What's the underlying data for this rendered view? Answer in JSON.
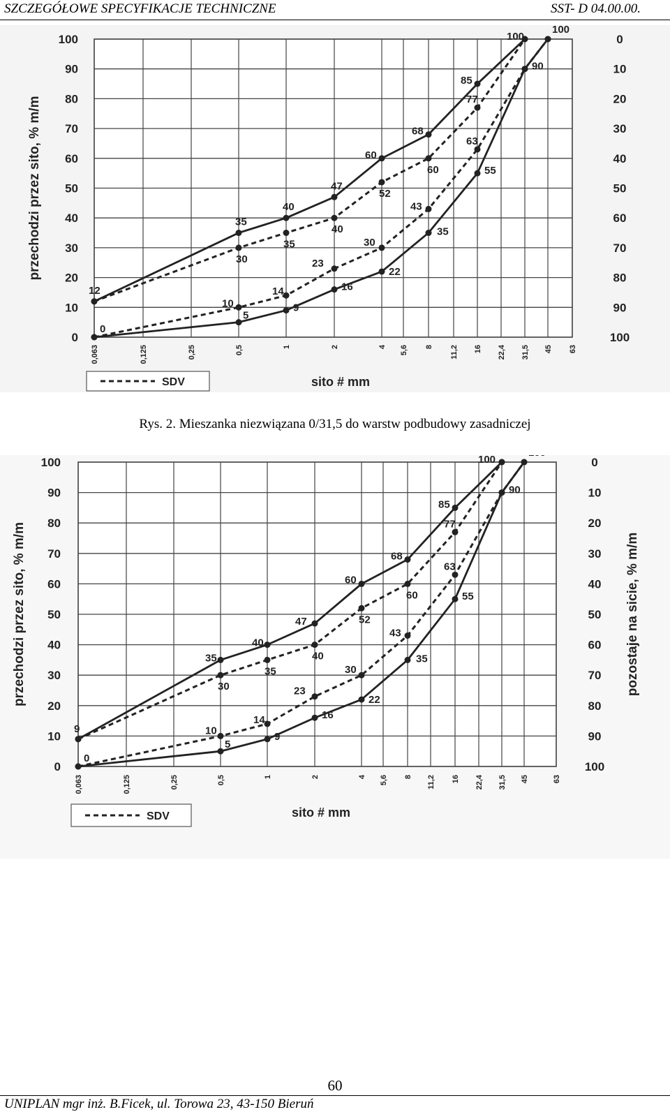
{
  "header": {
    "left": "SZCZEGÓŁOWE SPECYFIKACJE TECHNICZNE",
    "right": "SST- D 04.00.00."
  },
  "caption": "Rys. 2. Mieszanka niezwiązana 0/31,5 do warstw podbudowy zasadniczej",
  "page_number": "60",
  "footer": "UNIPLAN  mgr inż. B.Ficek, ul. Torowa 23, 43-150 Bieruń",
  "chart_data": [
    {
      "type": "line",
      "xlabel": "sito # mm",
      "ylabel": "przechodzi przez sito, % m/m",
      "ylabel_right": "",
      "legend": "SDV",
      "categories": [
        "0,063",
        "0,125",
        "0,25",
        "0,5",
        "1",
        "2",
        "4",
        "5,6",
        "8",
        "11,2",
        "16",
        "22,4",
        "31,5",
        "45",
        "63"
      ],
      "y_ticks": [
        "100",
        "90",
        "80",
        "70",
        "60",
        "50",
        "40",
        "30",
        "20",
        "10",
        "0"
      ],
      "y_right_ticks": [
        "0",
        "10",
        "20",
        "30",
        "40",
        "50",
        "60",
        "70",
        "80",
        "90",
        "100"
      ],
      "ylim": [
        0,
        100
      ],
      "grid": true,
      "series": [
        {
          "style": "solid",
          "x": [
            "0,063",
            "0,5",
            "1",
            "2",
            "4",
            "8",
            "16",
            "31,5"
          ],
          "values": [
            12,
            35,
            40,
            47,
            60,
            68,
            85,
            100
          ]
        },
        {
          "style": "dashed",
          "x": [
            "0,063",
            "0,5",
            "1",
            "2",
            "4",
            "8",
            "16",
            "31,5"
          ],
          "values": [
            12,
            30,
            35,
            40,
            52,
            60,
            77,
            100
          ]
        },
        {
          "style": "dashed",
          "x": [
            "0,063",
            "0,5",
            "1",
            "2",
            "4",
            "8",
            "16",
            "31,5",
            "45"
          ],
          "values": [
            0,
            10,
            14,
            23,
            30,
            43,
            63,
            90,
            100
          ]
        },
        {
          "style": "solid",
          "x": [
            "0,063",
            "0,5",
            "1",
            "2",
            "4",
            "8",
            "16",
            "31,5",
            "45"
          ],
          "values": [
            0,
            5,
            9,
            16,
            22,
            35,
            55,
            90,
            100
          ]
        }
      ]
    },
    {
      "type": "line",
      "xlabel": "sito # mm",
      "ylabel": "przechodzi przez sito, % m/m",
      "ylabel_right": "pozostaje na sicie, % m/m",
      "legend": "SDV",
      "categories": [
        "0,063",
        "0,125",
        "0,25",
        "0,5",
        "1",
        "2",
        "4",
        "5,6",
        "8",
        "11,2",
        "16",
        "22,4",
        "31,5",
        "45",
        "63"
      ],
      "y_ticks": [
        "100",
        "90",
        "80",
        "70",
        "60",
        "50",
        "40",
        "30",
        "20",
        "10",
        "0"
      ],
      "y_right_ticks": [
        "0",
        "10",
        "20",
        "30",
        "40",
        "50",
        "60",
        "70",
        "80",
        "90",
        "100"
      ],
      "ylim": [
        0,
        100
      ],
      "grid": true,
      "series": [
        {
          "style": "solid",
          "x": [
            "0,063",
            "0,5",
            "1",
            "2",
            "4",
            "8",
            "16",
            "31,5"
          ],
          "values": [
            9,
            35,
            40,
            47,
            60,
            68,
            85,
            100
          ]
        },
        {
          "style": "dashed",
          "x": [
            "0,063",
            "0,5",
            "1",
            "2",
            "4",
            "8",
            "16",
            "31,5"
          ],
          "values": [
            9,
            30,
            35,
            40,
            52,
            60,
            77,
            100
          ]
        },
        {
          "style": "dashed",
          "x": [
            "0,063",
            "0,5",
            "1",
            "2",
            "4",
            "8",
            "16",
            "31,5",
            "45"
          ],
          "values": [
            0,
            10,
            14,
            23,
            30,
            43,
            63,
            90,
            100
          ]
        },
        {
          "style": "solid",
          "x": [
            "0,063",
            "0,5",
            "1",
            "2",
            "4",
            "8",
            "16",
            "31,5",
            "45"
          ],
          "values": [
            0,
            5,
            9,
            16,
            22,
            35,
            55,
            90,
            100
          ]
        }
      ]
    }
  ]
}
